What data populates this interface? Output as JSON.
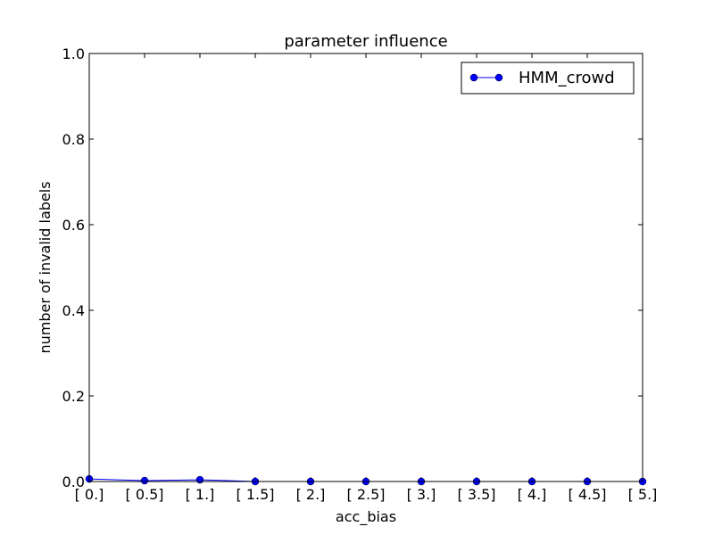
{
  "chart_data": {
    "type": "line",
    "title": "parameter influence",
    "xlabel": "acc_bias",
    "ylabel": "number of invalid labels",
    "categories": [
      "[ 0.]",
      "[ 0.5]",
      "[ 1.]",
      "[ 1.5]",
      "[ 2.]",
      "[ 2.5]",
      "[ 3.]",
      "[ 3.5]",
      "[ 4.]",
      "[ 4.5]",
      "[ 5.]"
    ],
    "x": [
      0,
      0.5,
      1,
      1.5,
      2,
      2.5,
      3,
      3.5,
      4,
      4.5,
      5
    ],
    "xlim": [
      0,
      5
    ],
    "ylim": [
      0,
      1.0
    ],
    "yticks": [
      0.0,
      0.2,
      0.4,
      0.6,
      0.8,
      1.0
    ],
    "ytick_labels": [
      "0.0",
      "0.2",
      "0.4",
      "0.6",
      "0.8",
      "1.0"
    ],
    "series": [
      {
        "name": "HMM_crowd",
        "color": "#0000ff",
        "marker": "circle",
        "values": [
          0.006,
          0.002,
          0.004,
          0.0,
          0.0,
          0.0,
          0.0,
          0.0,
          0.0,
          0.0,
          0.0
        ]
      }
    ],
    "legend_position": "top-right",
    "grid": false
  }
}
